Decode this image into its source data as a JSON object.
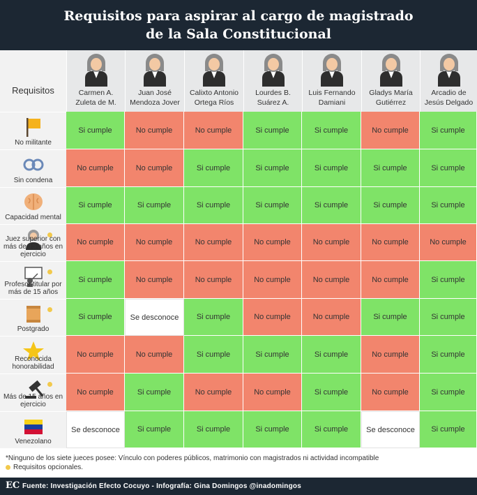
{
  "title_line1": "Requisitos para aspirar al cargo de magistrado",
  "title_line2": "de la Sala Constitucional",
  "requirements_header": "Requisitos",
  "judges": [
    {
      "line1": "Carmen A.",
      "line2": "Zuleta de M."
    },
    {
      "line1": "Juan José",
      "line2": "Mendoza Jover"
    },
    {
      "line1": "Calixto Antonio",
      "line2": "Ortega Ríos"
    },
    {
      "line1": "Lourdes B.",
      "line2": "Suárez A."
    },
    {
      "line1": "Luis Fernando",
      "line2": "Damiani"
    },
    {
      "line1": "Gladys María",
      "line2": "Gutiérrez"
    },
    {
      "line1": "Arcadio de",
      "line2": "Jesús Delgado"
    }
  ],
  "rows": [
    {
      "label": "No militante",
      "icon": "flag-icon",
      "optional": false,
      "values": [
        "Si cumple",
        "No cumple",
        "No cumple",
        "Si cumple",
        "Si cumple",
        "No cumple",
        "Si cumple"
      ]
    },
    {
      "label": "Sin condena",
      "icon": "handcuffs-icon",
      "optional": false,
      "values": [
        "No cumple",
        "No cumple",
        "Si cumple",
        "Si cumple",
        "Si cumple",
        "Si cumple",
        "Si cumple"
      ]
    },
    {
      "label": "Capacidad  mental",
      "icon": "brain-icon",
      "optional": false,
      "values": [
        "Si cumple",
        "Si cumple",
        "Si cumple",
        "Si cumple",
        "Si cumple",
        "Si cumple",
        "Si cumple"
      ]
    },
    {
      "label": "Juez superior con más de 15 años en ejercicio",
      "icon": "judge-icon",
      "optional": true,
      "values": [
        "No cumple",
        "No cumple",
        "No cumple",
        "No cumple",
        "No cumple",
        "No cumple",
        "No cumple"
      ]
    },
    {
      "label": "Profesor titular por más de 15 años",
      "icon": "professor-icon",
      "optional": true,
      "values": [
        "Si cumple",
        "No cumple",
        "No cumple",
        "No cumple",
        "No cumple",
        "No cumple",
        "Si cumple"
      ]
    },
    {
      "label": "Postgrado",
      "icon": "diploma-icon",
      "optional": true,
      "values": [
        "Si cumple",
        "Se desconoce",
        "Si cumple",
        "No cumple",
        "No cumple",
        "Si cumple",
        "Si cumple"
      ]
    },
    {
      "label": "Reconocida honorabilidad",
      "icon": "star-icon",
      "optional": false,
      "values": [
        "No cumple",
        "No cumple",
        "Si cumple",
        "Si cumple",
        "Si cumple",
        "No cumple",
        "Si cumple"
      ]
    },
    {
      "label": "Más de 15 años en ejercicio",
      "icon": "gavel-icon",
      "optional": true,
      "values": [
        "No cumple",
        "Si cumple",
        "No cumple",
        "No cumple",
        "Si cumple",
        "No cumple",
        "Si cumple"
      ]
    },
    {
      "label": "Venezolano",
      "icon": "venezuela-flag-icon",
      "optional": false,
      "values": [
        "Se desconoce",
        "Si cumple",
        "Si cumple",
        "Si cumple",
        "Si cumple",
        "Se desconoce",
        "Si cumple"
      ]
    }
  ],
  "footnote": "*Ninguno de los siete jueces posee: Vínculo con poderes públicos, matrimonio con magistrados ni actividad incompatible",
  "optional_legend": "Requisitos opcionales.",
  "footer_logo": "EC",
  "footer_source": "Fuente: Investigación Efecto Cocuyo - Infografía: Gina Domingos @inadomingos",
  "colors": {
    "meets": "#7fe367",
    "fails": "#f2856d",
    "unknown": "#ffffff",
    "header_bg": "#1c2733",
    "optional_dot": "#f2c94c"
  }
}
